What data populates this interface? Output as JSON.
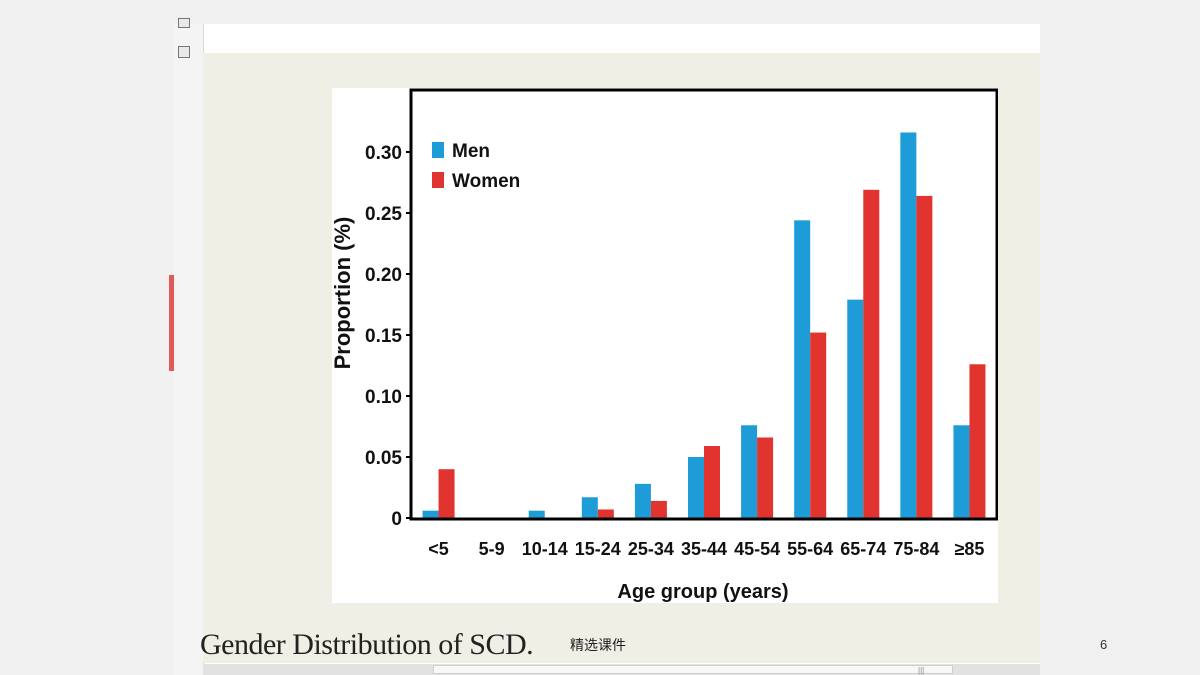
{
  "chart_data": {
    "type": "bar",
    "xlabel": "Age group (years)",
    "ylabel": "Proportion (%)",
    "ylim": [
      0,
      0.35
    ],
    "yticks": [
      "0",
      "0.05",
      "0.10",
      "0.15",
      "0.20",
      "0.25",
      "0.30"
    ],
    "categories": [
      "<5",
      "5-9",
      "10-14",
      "15-24",
      "25-34",
      "35-44",
      "45-54",
      "55-64",
      "65-74",
      "75-84",
      "≥85"
    ],
    "series": [
      {
        "name": "Men",
        "color": "#1e9cd7",
        "values": [
          0.006,
          0,
          0.006,
          0.017,
          0.028,
          0.05,
          0.076,
          0.244,
          0.179,
          0.316,
          0.076
        ]
      },
      {
        "name": "Women",
        "color": "#e2342f",
        "values": [
          0.04,
          0,
          0,
          0.007,
          0.014,
          0.059,
          0.066,
          0.152,
          0.269,
          0.264,
          0.126
        ]
      }
    ],
    "legend": "top-left",
    "grid": false
  },
  "caption": "Gender Distribution of SCD.",
  "footer_label": "精选课件",
  "page_number": "6"
}
